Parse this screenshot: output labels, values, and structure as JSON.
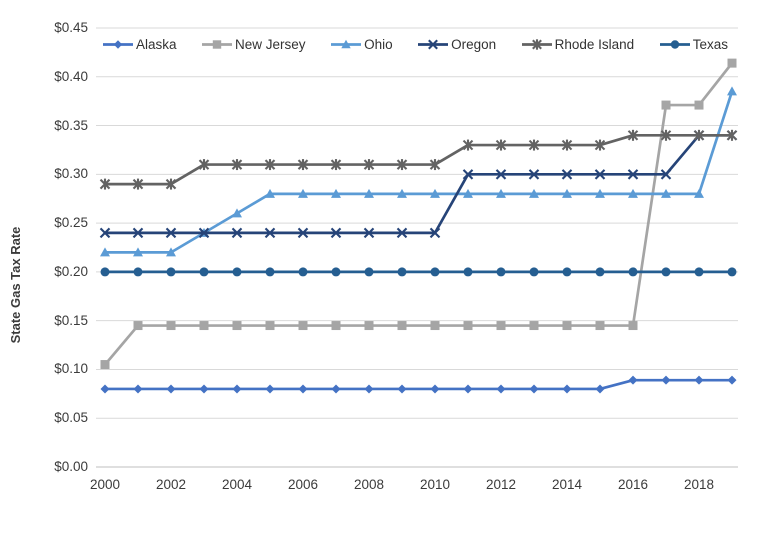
{
  "chart_data": {
    "type": "line",
    "title": "",
    "xlabel": "",
    "ylabel": "State Gas Tax Rate",
    "x": [
      2000,
      2001,
      2002,
      2003,
      2004,
      2005,
      2006,
      2007,
      2008,
      2009,
      2010,
      2011,
      2012,
      2013,
      2014,
      2015,
      2016,
      2017,
      2018,
      2019
    ],
    "x_axis_tick_labels": [
      "2000",
      "2002",
      "2004",
      "2006",
      "2008",
      "2010",
      "2012",
      "2014",
      "2016",
      "2018"
    ],
    "y_axis_tick_labels": [
      "$0.00",
      "$0.05",
      "$0.10",
      "$0.15",
      "$0.20",
      "$0.25",
      "$0.30",
      "$0.35",
      "$0.40",
      "$0.45"
    ],
    "ylim": [
      0,
      0.45
    ],
    "y_tick_step": 0.05,
    "grid": true,
    "legend_position": "top",
    "gridline_color": "#d9d9d9",
    "axis_color": "#bfbfbf",
    "text_color": "#3b3b3b",
    "series": [
      {
        "name": "Alaska",
        "color": "#4472C4",
        "marker": "diamond",
        "values": [
          0.08,
          0.08,
          0.08,
          0.08,
          0.08,
          0.08,
          0.08,
          0.08,
          0.08,
          0.08,
          0.08,
          0.08,
          0.08,
          0.08,
          0.08,
          0.08,
          0.089,
          0.089,
          0.089,
          0.089
        ]
      },
      {
        "name": "New Jersey",
        "color": "#A5A5A5",
        "marker": "square",
        "values": [
          0.105,
          0.145,
          0.145,
          0.145,
          0.145,
          0.145,
          0.145,
          0.145,
          0.145,
          0.145,
          0.145,
          0.145,
          0.145,
          0.145,
          0.145,
          0.145,
          0.145,
          0.371,
          0.371,
          0.414
        ]
      },
      {
        "name": "Ohio",
        "color": "#5B9BD5",
        "marker": "triangle",
        "values": [
          0.22,
          0.22,
          0.22,
          0.24,
          0.26,
          0.28,
          0.28,
          0.28,
          0.28,
          0.28,
          0.28,
          0.28,
          0.28,
          0.28,
          0.28,
          0.28,
          0.28,
          0.28,
          0.28,
          0.385
        ]
      },
      {
        "name": "Oregon",
        "color": "#264478",
        "marker": "x",
        "values": [
          0.24,
          0.24,
          0.24,
          0.24,
          0.24,
          0.24,
          0.24,
          0.24,
          0.24,
          0.24,
          0.24,
          0.3,
          0.3,
          0.3,
          0.3,
          0.3,
          0.3,
          0.3,
          0.34,
          0.34
        ]
      },
      {
        "name": "Rhode Island",
        "color": "#636363",
        "marker": "asterisk",
        "values": [
          0.29,
          0.29,
          0.29,
          0.31,
          0.31,
          0.31,
          0.31,
          0.31,
          0.31,
          0.31,
          0.31,
          0.33,
          0.33,
          0.33,
          0.33,
          0.33,
          0.34,
          0.34,
          0.34,
          0.34
        ]
      },
      {
        "name": "Texas",
        "color": "#255E91",
        "marker": "circle",
        "values": [
          0.2,
          0.2,
          0.2,
          0.2,
          0.2,
          0.2,
          0.2,
          0.2,
          0.2,
          0.2,
          0.2,
          0.2,
          0.2,
          0.2,
          0.2,
          0.2,
          0.2,
          0.2,
          0.2,
          0.2
        ]
      }
    ]
  }
}
